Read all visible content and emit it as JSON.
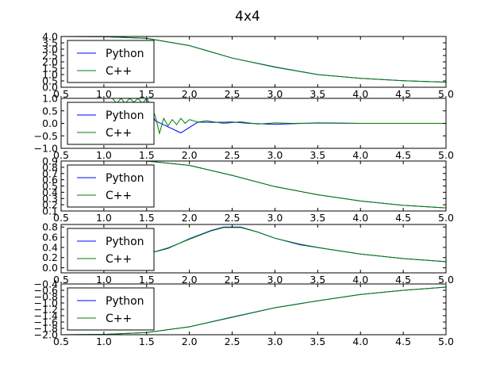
{
  "title": "4x4",
  "colors": {
    "python": "#0000ff",
    "cpp": "#008000"
  },
  "chart_data": [
    {
      "type": "line",
      "xlim": [
        0.5,
        5.0
      ],
      "ylim": [
        0.0,
        4.0
      ],
      "xticks": [
        "0.5",
        "1.0",
        "1.5",
        "2.0",
        "2.5",
        "3.0",
        "3.5",
        "4.0",
        "4.5",
        "5.0"
      ],
      "yticks": [
        "0.0",
        "0.5",
        "1.0",
        "1.5",
        "2.0",
        "2.5",
        "3.0",
        "3.5",
        "4.0"
      ],
      "legend": {
        "placement": "upper-left",
        "entries": [
          "Python",
          "C++"
        ]
      },
      "series": [
        {
          "name": "Python",
          "x": [
            0.5,
            1.0,
            1.5,
            2.0,
            2.5,
            3.0,
            3.5,
            4.0,
            4.5,
            5.0
          ],
          "y": [
            4.0,
            3.99,
            3.85,
            3.28,
            2.3,
            1.6,
            1.0,
            0.7,
            0.52,
            0.4
          ]
        },
        {
          "name": "C++",
          "x": [
            0.5,
            1.0,
            1.5,
            2.0,
            2.5,
            3.0,
            3.5,
            4.0,
            4.5,
            5.0
          ],
          "y": [
            4.0,
            3.99,
            3.86,
            3.28,
            2.3,
            1.58,
            1.0,
            0.7,
            0.52,
            0.4
          ]
        }
      ]
    },
    {
      "type": "line",
      "xlim": [
        0.5,
        5.0
      ],
      "ylim": [
        -1.0,
        1.0
      ],
      "xticks": [
        "0.5",
        "1.0",
        "1.5",
        "2.0",
        "2.5",
        "3.0",
        "3.5",
        "4.0",
        "4.5",
        "5.0"
      ],
      "yticks": [
        "−1.0",
        "−0.5",
        "0.0",
        "0.5",
        "1.0"
      ],
      "legend": {
        "placement": "upper-left",
        "entries": [
          "Python",
          "C++"
        ]
      },
      "series": [
        {
          "name": "Python",
          "x": [
            1.5,
            1.6,
            1.9,
            2.1,
            2.3,
            2.5,
            2.7,
            3.0,
            3.5,
            4.0,
            4.5,
            5.0
          ],
          "y": [
            0.9,
            0.1,
            -0.38,
            0.05,
            0.04,
            0.05,
            0.0,
            -0.04,
            0.02,
            0.0,
            0.0,
            0.0
          ]
        },
        {
          "name": "C++",
          "x": [
            1.1,
            1.15,
            1.2,
            1.25,
            1.3,
            1.35,
            1.4,
            1.45,
            1.5,
            1.55,
            1.6,
            1.65,
            1.7,
            1.75,
            1.8,
            1.85,
            1.9,
            1.95,
            2.0,
            2.1,
            2.2,
            2.4,
            2.6,
            2.8,
            3.0,
            3.2,
            3.5,
            4.0,
            4.5,
            5.0
          ],
          "y": [
            1.0,
            0.8,
            1.0,
            0.8,
            1.0,
            0.85,
            1.0,
            0.8,
            1.0,
            0.7,
            0.3,
            -0.4,
            0.2,
            -0.1,
            0.15,
            -0.05,
            0.2,
            0.0,
            0.15,
            0.05,
            0.1,
            0.0,
            0.06,
            -0.03,
            0.02,
            0.0,
            0.01,
            0.0,
            0.0,
            0.0
          ]
        }
      ]
    },
    {
      "type": "line",
      "xlim": [
        0.5,
        5.0
      ],
      "ylim": [
        0.1,
        0.9
      ],
      "xticks": [
        "0.5",
        "1.0",
        "1.5",
        "2.0",
        "2.5",
        "3.0",
        "3.5",
        "4.0",
        "4.5",
        "5.0"
      ],
      "yticks": [
        "0.1",
        "0.2",
        "0.3",
        "0.4",
        "0.5",
        "0.6",
        "0.7",
        "0.8",
        "0.9"
      ],
      "legend": {
        "placement": "upper-left",
        "entries": [
          "Python",
          "C++"
        ]
      },
      "series": [
        {
          "name": "Python",
          "x": [
            0.5,
            1.0,
            1.5,
            2.0,
            2.5,
            3.0,
            3.5,
            4.0,
            4.5,
            5.0
          ],
          "y": [
            0.92,
            0.92,
            0.9,
            0.83,
            0.67,
            0.49,
            0.36,
            0.26,
            0.19,
            0.15
          ]
        },
        {
          "name": "C++",
          "x": [
            0.5,
            1.0,
            1.5,
            2.0,
            2.5,
            3.0,
            3.5,
            4.0,
            4.5,
            5.0
          ],
          "y": [
            0.92,
            0.92,
            0.9,
            0.83,
            0.67,
            0.49,
            0.36,
            0.26,
            0.19,
            0.15
          ]
        }
      ]
    },
    {
      "type": "line",
      "xlim": [
        0.5,
        5.0
      ],
      "ylim": [
        -0.1,
        0.85
      ],
      "xticks": [
        "0.5",
        "1.0",
        "1.5",
        "2.0",
        "2.5",
        "3.0",
        "3.5",
        "4.0",
        "4.5",
        "5.0"
      ],
      "yticks": [
        "0.0",
        "0.2",
        "0.4",
        "0.6",
        "0.8"
      ],
      "legend": {
        "placement": "upper-left",
        "entries": [
          "Python",
          "C++"
        ]
      },
      "series": [
        {
          "name": "Python",
          "x": [
            1.5,
            1.75,
            2.0,
            2.25,
            2.4,
            2.6,
            2.8,
            3.0,
            3.3,
            3.6,
            4.0,
            4.5,
            5.0
          ],
          "y": [
            0.27,
            0.38,
            0.57,
            0.73,
            0.8,
            0.8,
            0.7,
            0.58,
            0.45,
            0.37,
            0.27,
            0.18,
            0.12
          ]
        },
        {
          "name": "C++",
          "x": [
            1.5,
            1.75,
            2.0,
            2.25,
            2.4,
            2.6,
            2.8,
            3.0,
            3.3,
            3.6,
            4.0,
            4.5,
            5.0
          ],
          "y": [
            0.27,
            0.39,
            0.56,
            0.72,
            0.79,
            0.79,
            0.7,
            0.58,
            0.46,
            0.37,
            0.27,
            0.18,
            0.12
          ]
        }
      ]
    },
    {
      "type": "line",
      "xlim": [
        0.5,
        5.0
      ],
      "ylim": [
        -2.0,
        -0.4
      ],
      "xticks": [
        "0.5",
        "1.0",
        "1.5",
        "2.0",
        "2.5",
        "3.0",
        "3.5",
        "4.0",
        "4.5",
        "5.0"
      ],
      "yticks": [
        "−2.0",
        "−1.8",
        "−1.6",
        "−1.4",
        "−1.2",
        "−1.0",
        "−0.8",
        "−0.6",
        "−0.4"
      ],
      "legend": {
        "placement": "upper-left",
        "entries": [
          "Python",
          "C++"
        ]
      },
      "series": [
        {
          "name": "Python",
          "x": [
            0.5,
            1.0,
            1.5,
            2.0,
            2.5,
            3.0,
            3.5,
            4.0,
            4.5,
            5.0
          ],
          "y": [
            -2.0,
            -1.99,
            -1.93,
            -1.75,
            -1.45,
            -1.15,
            -0.93,
            -0.73,
            -0.6,
            -0.5
          ]
        },
        {
          "name": "C++",
          "x": [
            0.5,
            1.0,
            1.5,
            2.0,
            2.5,
            3.0,
            3.5,
            4.0,
            4.5,
            5.0
          ],
          "y": [
            -2.0,
            -1.99,
            -1.93,
            -1.75,
            -1.44,
            -1.15,
            -0.93,
            -0.73,
            -0.6,
            -0.5
          ]
        }
      ]
    }
  ]
}
